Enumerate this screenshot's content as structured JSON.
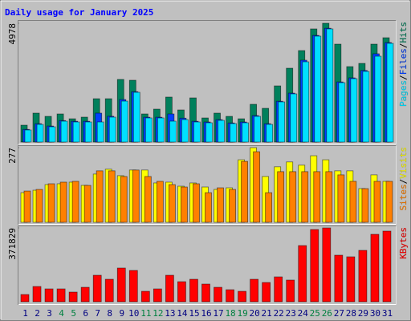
{
  "chart_data": [
    {
      "type": "bar",
      "title": "Daily usage for January 2025",
      "ylim": [
        0,
        4978
      ],
      "yticks": [
        4978
      ],
      "legend_separator": "/",
      "series": [
        {
          "name": "Hits",
          "color": "#00805c",
          "values": [
            706,
            1211,
            1076,
            1177,
            975,
            1043,
            1816,
            1816,
            2624,
            2590,
            1177,
            1379,
            1884,
            1345,
            1850,
            1009,
            1211,
            1076,
            975,
            1581,
            1413,
            2354,
            3094,
            3834,
            4742,
            4978,
            4103,
            3161,
            3296,
            4103,
            4372
          ]
        },
        {
          "name": "Files",
          "color": "#0040ff",
          "values": [
            530,
            770,
            670,
            900,
            870,
            870,
            1211,
            1080,
            1782,
            2110,
            1040,
            1040,
            1177,
            1000,
            870,
            840,
            940,
            800,
            840,
            1110,
            770,
            1710,
            2050,
            3430,
            4470,
            4770,
            2520,
            2690,
            3000,
            3700,
            4170
          ]
        },
        {
          "name": "Pages",
          "color": "#00e0ff",
          "values": [
            505,
            740,
            639,
            874,
            841,
            841,
            841,
            1043,
            1715,
            2085,
            1009,
            1009,
            874,
            942,
            841,
            807,
            908,
            774,
            807,
            1076,
            740,
            1682,
            2018,
            3363,
            4439,
            4742,
            2489,
            2657,
            2960,
            3598,
            4137
          ]
        }
      ]
    },
    {
      "type": "bar",
      "ylim": [
        0,
        277
      ],
      "yticks": [
        277
      ],
      "legend_separator": "/",
      "series": [
        {
          "name": "Visits",
          "color": "#ffff00",
          "values": [
            110,
            119,
            140,
            143,
            149,
            137,
            179,
            197,
            173,
            194,
            194,
            146,
            149,
            134,
            146,
            131,
            122,
            128,
            232,
            277,
            170,
            206,
            224,
            212,
            247,
            232,
            191,
            191,
            125,
            176,
            152
          ]
        },
        {
          "name": "Sites",
          "color": "#ff8000",
          "values": [
            116,
            122,
            143,
            149,
            152,
            137,
            191,
            191,
            170,
            194,
            170,
            152,
            140,
            131,
            143,
            110,
            128,
            122,
            226,
            262,
            110,
            188,
            188,
            188,
            188,
            188,
            176,
            152,
            125,
            152,
            152
          ]
        }
      ]
    },
    {
      "type": "bar",
      "ylim": [
        0,
        371829
      ],
      "yticks": [
        371829
      ],
      "categories": [
        "1",
        "2",
        "3",
        "4",
        "5",
        "6",
        "7",
        "8",
        "9",
        "10",
        "11",
        "12",
        "13",
        "14",
        "15",
        "16",
        "17",
        "18",
        "19",
        "20",
        "21",
        "22",
        "23",
        "24",
        "25",
        "26",
        "27",
        "28",
        "29",
        "30",
        "31"
      ],
      "category_colors": [
        "#000080",
        "#000080",
        "#000080",
        "#008040",
        "#008040",
        "#000080",
        "#000080",
        "#000080",
        "#000080",
        "#000080",
        "#008040",
        "#008040",
        "#000080",
        "#000080",
        "#000080",
        "#000080",
        "#000080",
        "#008040",
        "#008040",
        "#000080",
        "#000080",
        "#000080",
        "#000080",
        "#000080",
        "#008040",
        "#008040",
        "#000080",
        "#000080",
        "#000080",
        "#000080",
        "#000080"
      ],
      "series": [
        {
          "name": "KBytes",
          "color": "#ff0000",
          "values": [
            36378,
            76800,
            64670,
            64670,
            48500,
            72750,
            133380,
            113170,
            169760,
            157630,
            52540,
            64670,
            133380,
            101040,
            113170,
            88920,
            72750,
            60630,
            52540,
            113170,
            97000,
            125300,
            109130,
            282930,
            363770,
            371829,
            234430,
            226340,
            258690,
            339520,
            355690
          ]
        }
      ]
    }
  ]
}
